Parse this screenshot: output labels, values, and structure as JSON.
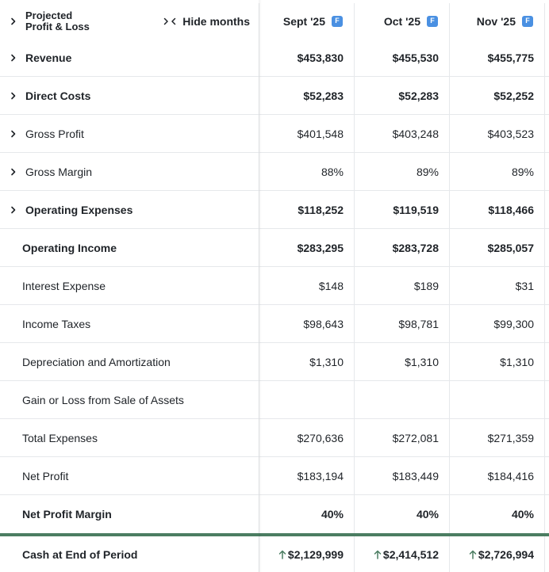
{
  "header": {
    "title_line1": "Projected",
    "title_line2": "Profit & Loss",
    "hide_label": "Hide months",
    "months": [
      {
        "label": "Sept '25",
        "badge": "F"
      },
      {
        "label": "Oct '25",
        "badge": "F"
      },
      {
        "label": "Nov '25",
        "badge": "F"
      }
    ]
  },
  "rows": [
    {
      "label": "Revenue",
      "v1": "$453,830",
      "v2": "$455,530",
      "v3": "$455,775"
    },
    {
      "label": "Direct Costs",
      "v1": "$52,283",
      "v2": "$52,283",
      "v3": "$52,252"
    },
    {
      "label": "Gross Profit",
      "v1": "$401,548",
      "v2": "$403,248",
      "v3": "$403,523"
    },
    {
      "label": "Gross Margin",
      "v1": "88%",
      "v2": "89%",
      "v3": "89%"
    },
    {
      "label": "Operating Expenses",
      "v1": "$118,252",
      "v2": "$119,519",
      "v3": "$118,466"
    },
    {
      "label": "Operating Income",
      "v1": "$283,295",
      "v2": "$283,728",
      "v3": "$285,057"
    },
    {
      "label": "Interest Expense",
      "v1": "$148",
      "v2": "$189",
      "v3": "$31"
    },
    {
      "label": "Income Taxes",
      "v1": "$98,643",
      "v2": "$98,781",
      "v3": "$99,300"
    },
    {
      "label": "Depreciation and Amortization",
      "v1": "$1,310",
      "v2": "$1,310",
      "v3": "$1,310"
    },
    {
      "label": "Gain or Loss from Sale of Assets",
      "v1": "",
      "v2": "",
      "v3": ""
    },
    {
      "label": "Total Expenses",
      "v1": "$270,636",
      "v2": "$272,081",
      "v3": "$271,359"
    },
    {
      "label": "Net Profit",
      "v1": "$183,194",
      "v2": "$183,449",
      "v3": "$184,416"
    },
    {
      "label": "Net Profit Margin",
      "v1": "40%",
      "v2": "40%",
      "v3": "40%"
    }
  ],
  "cash": {
    "label": "Cash at End of Period",
    "v1": "$2,129,999",
    "v2": "$2,414,512",
    "v3": "$2,726,994"
  },
  "colors": {
    "badge": "#4a90e2",
    "divider": "#4b7d62",
    "arrow": "#4b7d62"
  }
}
